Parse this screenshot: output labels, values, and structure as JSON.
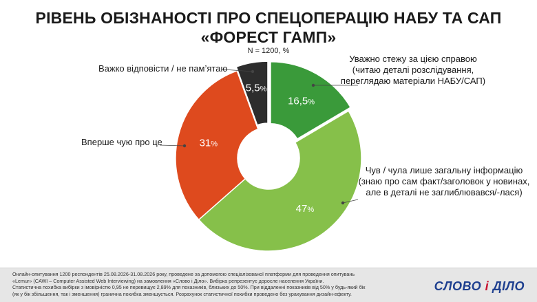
{
  "title": {
    "line1": "РІВЕНЬ ОБІЗНАНОСТІ ПРО СПЕЦОПЕРАЦІЮ НАБУ ТА САП",
    "line2": "«ФОРЕСТ ГАМП»"
  },
  "subtitle": "N = 1200, %",
  "labels": {
    "green_dark": [
      "Уважно стежу за цією справою",
      "(читаю деталі розслідування,",
      "переглядаю матеріали НАБУ/САП)"
    ],
    "hard": "Важко відповісти / не пам’ятаю",
    "first": "Вперше чую про це",
    "green_light": [
      "Чув / чула лише загальну інформацію",
      "(знаю про сам факт/заголовок у новинах,",
      "але в деталі не заглиблювався/-лася)"
    ]
  },
  "chart_data": {
    "type": "pie",
    "donut": true,
    "title": "РІВЕНЬ ОБІЗНАНОСТІ ПРО СПЕЦОПЕРАЦІЮ НАБУ ТА САП «ФОРЕСТ ГАМП»",
    "subtitle": "N = 1200, %",
    "slices": [
      {
        "name": "Уважно стежу за цією справою (читаю деталі розслідування, переглядаю матеріали НАБУ/САП)",
        "value": 16.5,
        "label": "16,5",
        "color": "#3a9a3a"
      },
      {
        "name": "Чув / чула лише загальну інформацію (знаю про сам факт/заголовок у новинах, але в деталі не заглиблювався/-лася)",
        "value": 47,
        "label": "47",
        "color": "#86c04a"
      },
      {
        "name": "Вперше чую про це",
        "value": 31,
        "label": "31",
        "color": "#de4a1e"
      },
      {
        "name": "Важко відповісти / не пам’ятаю",
        "value": 5.5,
        "label": "5,5",
        "color": "#2d2d2d"
      }
    ],
    "unit": "%"
  },
  "footer": {
    "lines": [
      "Онлайн-опитування 1200 респондентів 25.08.2026-31.08.2026 року, проведене за допомогою спеціалізованої платформи для проведення опитувань",
      "«Lemur» (CAWI – Computer Assisted Web Interviewing) на замовлення «Слово і Діло». Вибірка репрезентує доросле населення України.",
      "Статистична похибка вибірки з імовірністю 0,95 не перевищує 2,89% для показників, близьких до 50%. При віддаленні показників від 50% у будь-який бік",
      "(як у бік збільшення, так і зменшення) гранична похибка зменшується. Розрахунок статистичної похибки проведено без урахування дизайн-ефекту."
    ],
    "logo_word1": "СЛОВО",
    "logo_amp": "і",
    "logo_word2": "ДІЛО"
  }
}
